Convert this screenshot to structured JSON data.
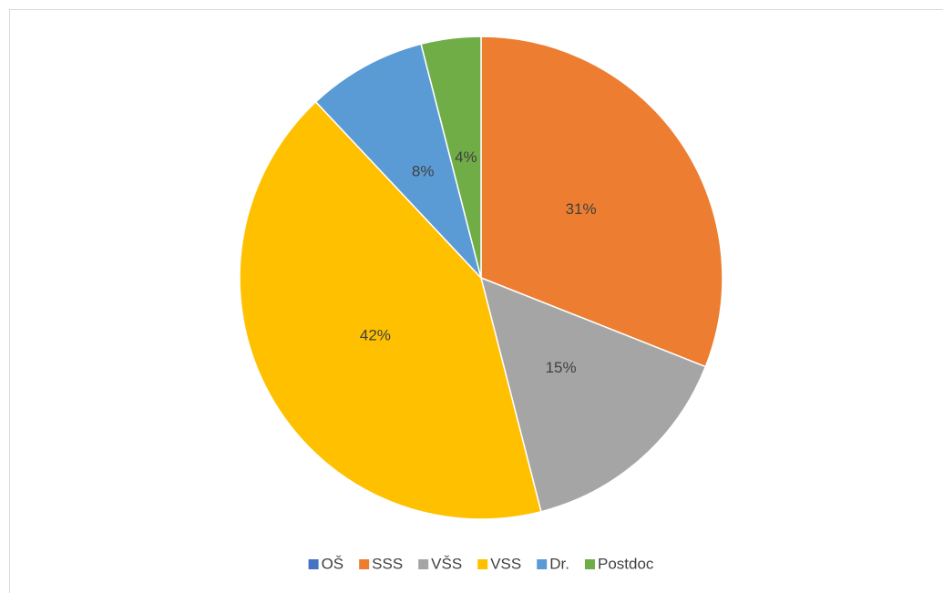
{
  "chart_data": {
    "type": "pie",
    "categories": [
      "OŠ",
      "SSS",
      "VŠS",
      "VSS",
      "Dr.",
      "Postdoc"
    ],
    "values": [
      0,
      31,
      15,
      42,
      8,
      4
    ],
    "value_labels": [
      null,
      "31%",
      "15%",
      "42%",
      "8%",
      "4%"
    ],
    "colors": [
      "#4472c4",
      "#ed7d31",
      "#a5a5a5",
      "#ffc000",
      "#5b9bd5",
      "#70ad47"
    ],
    "legend": "bottom"
  }
}
